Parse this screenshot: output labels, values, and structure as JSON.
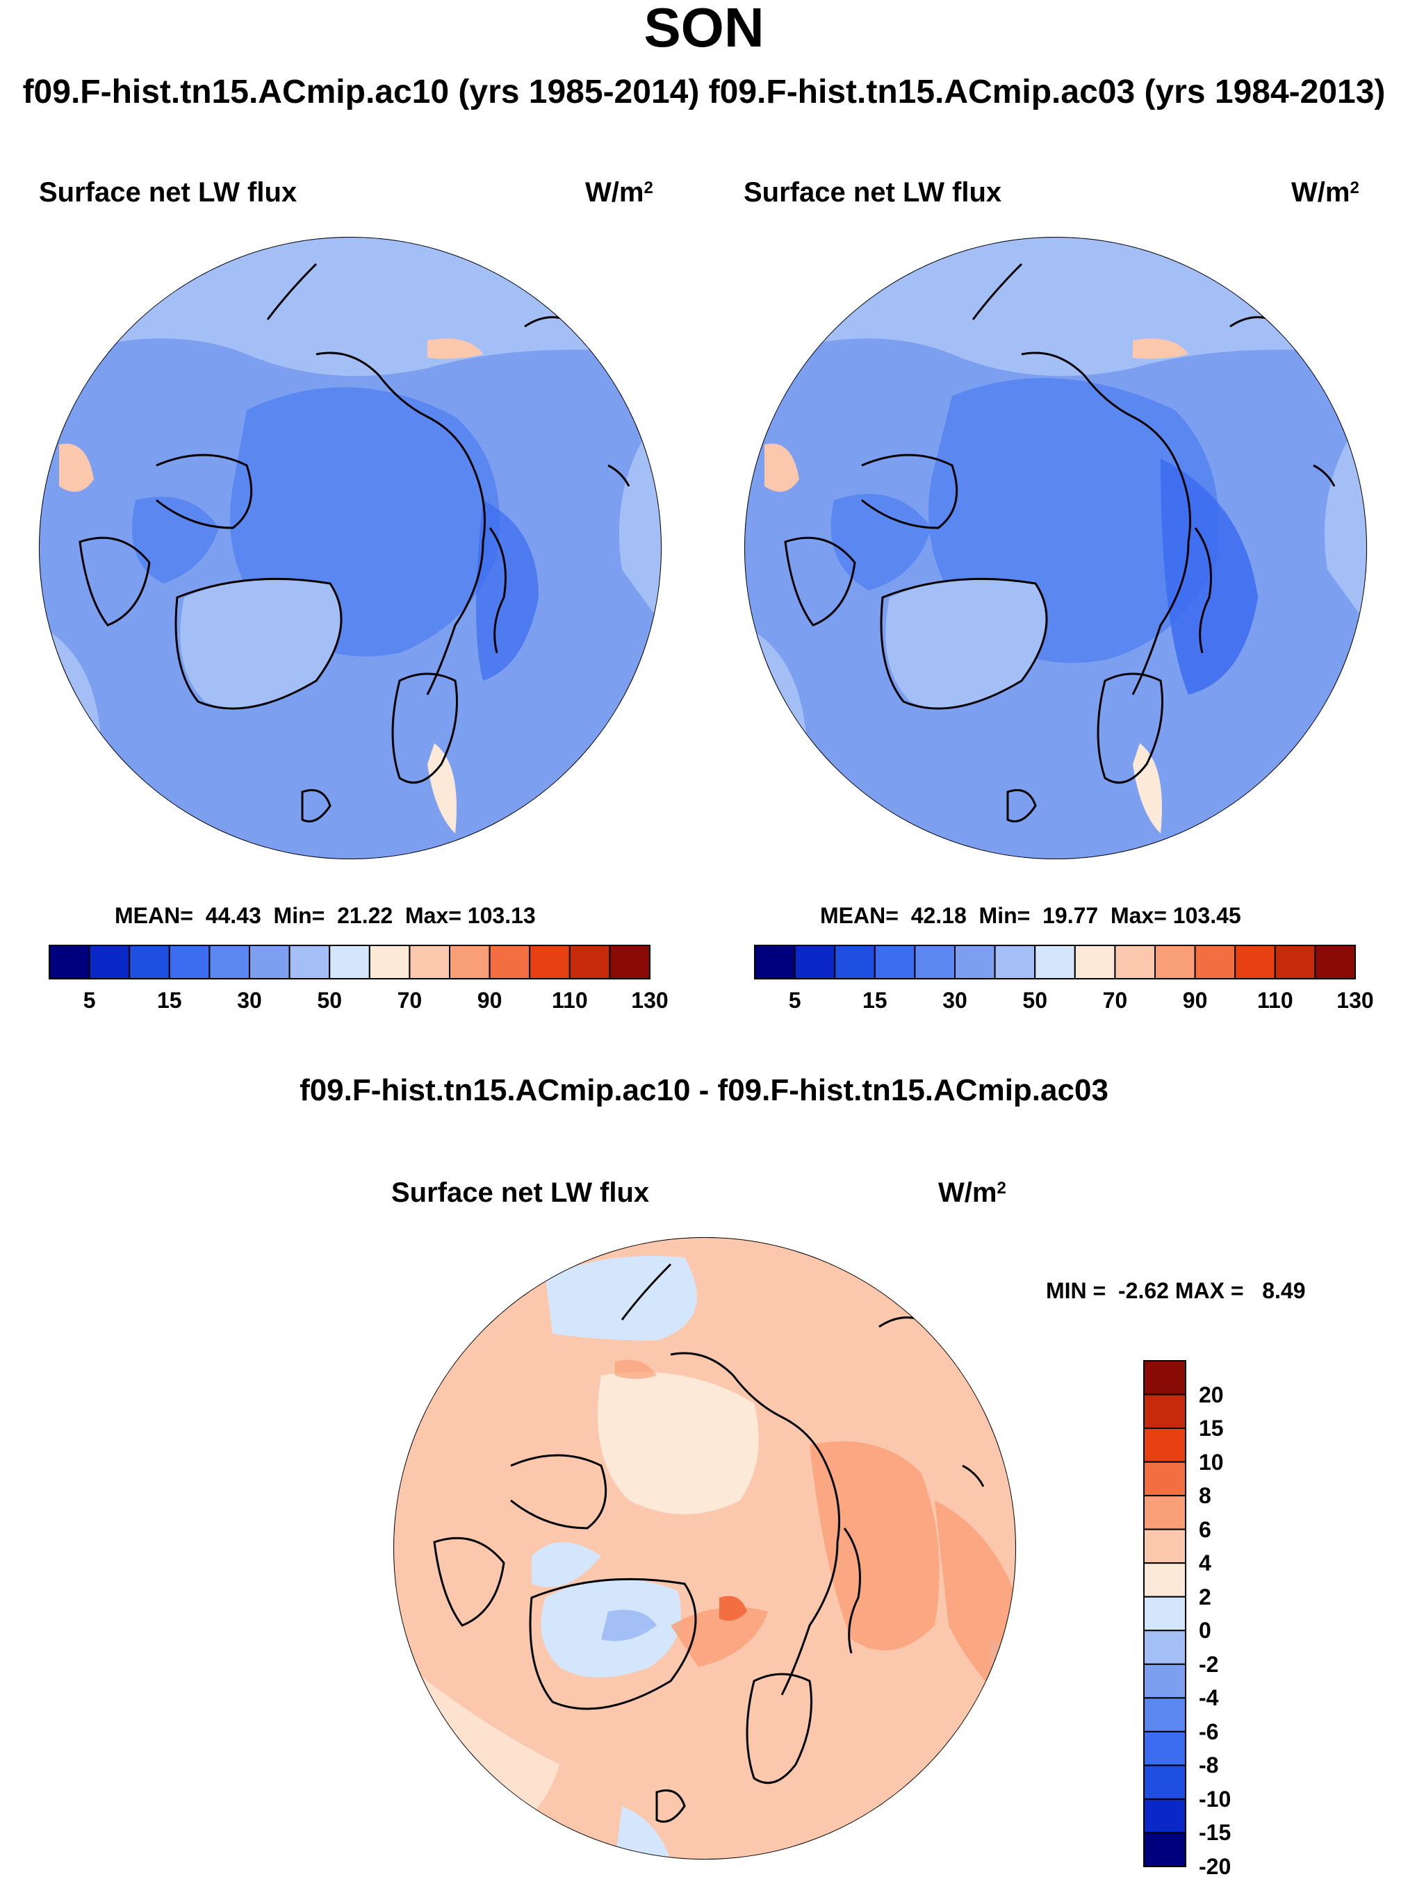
{
  "figure": {
    "season": "SON",
    "runs_header": "f09.F-hist.tn15.ACmip.ac10 (yrs 1985-2014)  f09.F-hist.tn15.ACmip.ac03 (yrs 1984-2013)",
    "diff_header": "f09.F-hist.tn15.ACmip.ac10 - f09.F-hist.tn15.ACmip.ac03"
  },
  "panels": [
    {
      "title": "Surface net LW flux",
      "units_base": "W/m",
      "units_exp": "2",
      "stats_text": "MEAN=  44.43  Min=  21.22  Max= 103.13",
      "mean": 44.43,
      "min": 21.22,
      "max": 103.13
    },
    {
      "title": "Surface net LW flux",
      "units_base": "W/m",
      "units_exp": "2",
      "stats_text": "MEAN=  42.18  Min=  19.77  Max= 103.45",
      "mean": 42.18,
      "min": 19.77,
      "max": 103.45
    },
    {
      "title": "Surface net LW flux",
      "units_base": "W/m",
      "units_exp": "2",
      "stats_text": "MIN =  -2.62 MAX =   8.49",
      "min": -2.62,
      "max": 8.49
    }
  ],
  "colorbar_main": {
    "colors": [
      "#00007f",
      "#0a28c8",
      "#1f4fe0",
      "#3c6cf0",
      "#5a88f0",
      "#7d9ff0",
      "#a4bff5",
      "#d3e6fb",
      "#fde9d8",
      "#fcc8ad",
      "#f99f77",
      "#f36f42",
      "#e64013",
      "#c52b0a",
      "#8a0a06"
    ],
    "tick_labels": [
      "5",
      "15",
      "30",
      "50",
      "70",
      "90",
      "110",
      "130"
    ]
  },
  "colorbar_diff": {
    "colors": [
      "#8a0a06",
      "#c52b0a",
      "#e64013",
      "#f36f42",
      "#f99f77",
      "#fcc8ad",
      "#fde9d8",
      "#d3e6fb",
      "#a4bff5",
      "#7d9ff0",
      "#5a88f0",
      "#3c6cf0",
      "#1f4fe0",
      "#0a28c8",
      "#00007f"
    ],
    "tick_labels": [
      "20",
      "15",
      "10",
      "8",
      "6",
      "4",
      "2",
      "0",
      "-2",
      "-4",
      "-6",
      "-8",
      "-10",
      "-15",
      "-20"
    ]
  }
}
